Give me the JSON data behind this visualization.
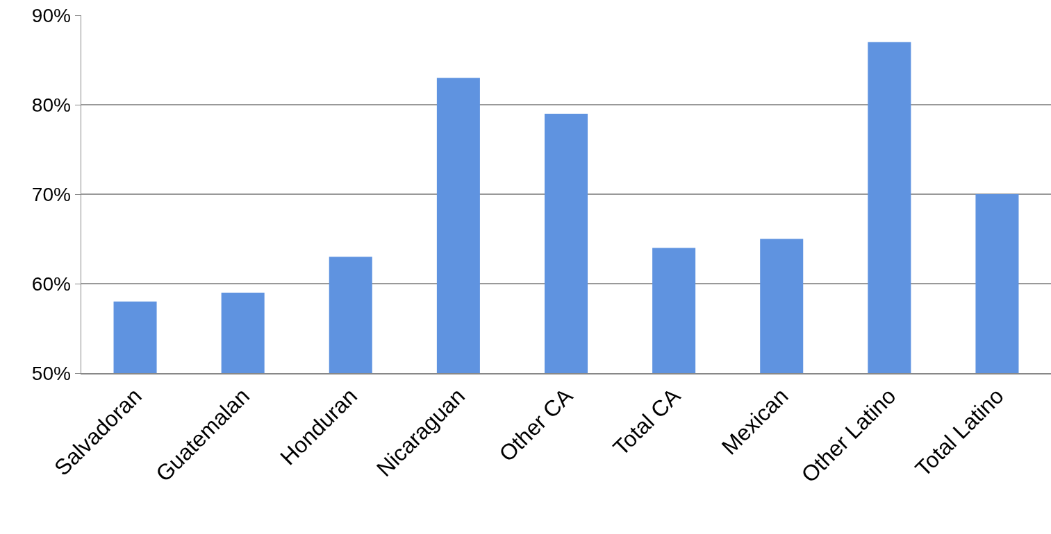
{
  "chart_data": {
    "type": "bar",
    "categories": [
      "Salvadoran",
      "Guatemalan",
      "Honduran",
      "Nicaraguan",
      "Other CA",
      "Total CA",
      "Mexican",
      "Other Latino",
      "Total Latino"
    ],
    "values": [
      58,
      59,
      63,
      83,
      79,
      64,
      65,
      87,
      70
    ],
    "color": "#5f93e0",
    "ylim": [
      50,
      90
    ],
    "yticks": [
      {
        "value": 50,
        "label": "50%"
      },
      {
        "value": 60,
        "label": "60%"
      },
      {
        "value": 70,
        "label": "70%"
      },
      {
        "value": 80,
        "label": "80%"
      },
      {
        "value": 90,
        "label": "90%"
      }
    ],
    "grid": "y"
  }
}
